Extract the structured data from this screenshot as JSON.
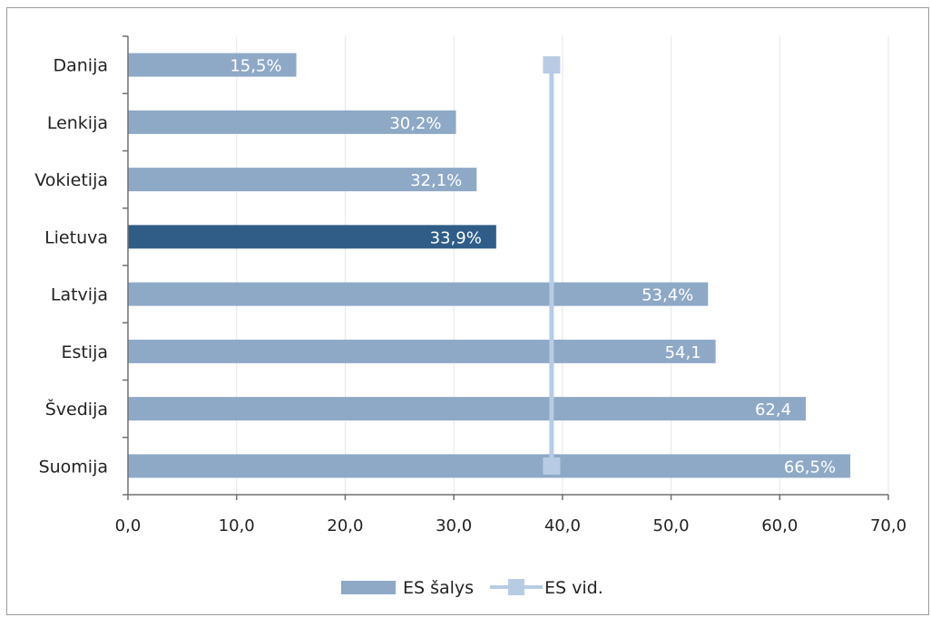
{
  "chart_data": {
    "type": "bar",
    "orientation": "horizontal",
    "categories": [
      "Danija",
      "Lenkija",
      "Vokietija",
      "Lietuva",
      "Latvija",
      "Estija",
      "Švedija",
      "Suomija"
    ],
    "series": [
      {
        "name": "ES šalys",
        "values": [
          15.5,
          30.2,
          32.1,
          33.9,
          53.4,
          54.1,
          62.4,
          66.5
        ],
        "data_labels": [
          "15,5%",
          "30,2%",
          "32,1%",
          "33,9%",
          "53,4%",
          "54,1",
          "62,4",
          "66,5%"
        ],
        "color": "#8EA9C6",
        "highlight_category": "Lietuva",
        "highlight_color": "#2F5D87"
      },
      {
        "name": "ES vid.",
        "type": "line",
        "value": 39.0,
        "color": "#B7CCE4"
      }
    ],
    "xlim": [
      0,
      70
    ],
    "xticks": [
      0,
      10,
      20,
      30,
      40,
      50,
      60,
      70
    ],
    "xtick_labels": [
      "0,0",
      "10,0",
      "20,0",
      "30,0",
      "40,0",
      "50,0",
      "60,0",
      "70,0"
    ],
    "grid": "vertical",
    "legend_position": "bottom"
  }
}
